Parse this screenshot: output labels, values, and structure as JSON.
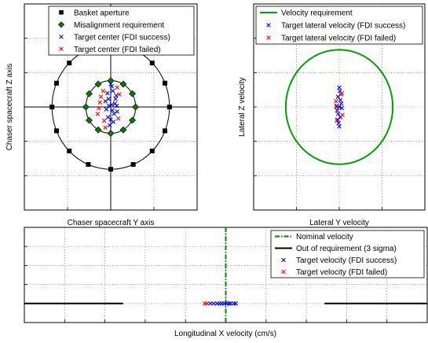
{
  "chart_data": [
    {
      "type": "scatter",
      "panel": "top-left",
      "xlabel": "Chaser spacecraft Y axis",
      "ylabel": "Chaser spacecraft Z axis",
      "xlim": [
        -4,
        4
      ],
      "ylim": [
        -4.5,
        4.5
      ],
      "grid": true,
      "legend_position": "top",
      "legend": [
        {
          "label": "Basket aperture",
          "marker": "square",
          "color": "#000000"
        },
        {
          "label": "Misalignment requirement",
          "marker": "diamond",
          "color": "#008000"
        },
        {
          "label": "Target center (FDI success)",
          "marker": "x",
          "color": "#0000ff"
        },
        {
          "label": "Target center (FDI failed)",
          "marker": "x",
          "color": "#ff0000"
        }
      ],
      "basket_aperture_radius": 2.72,
      "basket_aperture": [
        {
          "x": 2.72,
          "y": 0
        },
        {
          "x": 2.51,
          "y": 1.04
        },
        {
          "x": 1.92,
          "y": 1.92
        },
        {
          "x": 1.04,
          "y": 2.51
        },
        {
          "x": 0,
          "y": 2.72
        },
        {
          "x": -1.04,
          "y": 2.51
        },
        {
          "x": -1.92,
          "y": 1.92
        },
        {
          "x": -2.51,
          "y": 1.04
        },
        {
          "x": -2.72,
          "y": 0
        },
        {
          "x": -2.51,
          "y": -1.04
        },
        {
          "x": -1.92,
          "y": -1.92
        },
        {
          "x": -1.04,
          "y": -2.51
        },
        {
          "x": 0,
          "y": -2.72
        },
        {
          "x": 1.04,
          "y": -2.51
        },
        {
          "x": 1.92,
          "y": -1.92
        },
        {
          "x": 2.51,
          "y": -1.04
        }
      ],
      "misalignment_radius": 1.15,
      "misalignment_requirement": [
        {
          "x": 1.15,
          "y": 0
        },
        {
          "x": 1.0,
          "y": 0.58
        },
        {
          "x": 0.58,
          "y": 1.0
        },
        {
          "x": 0,
          "y": 1.15
        },
        {
          "x": -0.58,
          "y": 1.0
        },
        {
          "x": -1.0,
          "y": 0.58
        },
        {
          "x": -1.15,
          "y": 0
        },
        {
          "x": -1.0,
          "y": -0.58
        },
        {
          "x": -0.58,
          "y": -1.0
        },
        {
          "x": 0,
          "y": -1.15
        },
        {
          "x": 0.58,
          "y": -1.0
        },
        {
          "x": 1.0,
          "y": -0.58
        }
      ],
      "target_center_success": [
        {
          "x": 0.05,
          "y": 0.1
        },
        {
          "x": -0.1,
          "y": 0.35
        },
        {
          "x": 0.15,
          "y": -0.3
        },
        {
          "x": -0.2,
          "y": -0.1
        },
        {
          "x": 0.25,
          "y": 0.5
        },
        {
          "x": 0.0,
          "y": -0.55
        },
        {
          "x": 0.1,
          "y": 0.7
        },
        {
          "x": -0.05,
          "y": -0.8
        },
        {
          "x": 0.2,
          "y": 0.15
        },
        {
          "x": -0.15,
          "y": 0.6
        },
        {
          "x": 0.3,
          "y": -0.2
        },
        {
          "x": 0.05,
          "y": 0.9
        },
        {
          "x": -0.25,
          "y": 0.25
        },
        {
          "x": 0.12,
          "y": -0.65
        },
        {
          "x": -0.08,
          "y": 0.05
        },
        {
          "x": 0.22,
          "y": 0.35
        },
        {
          "x": 0.0,
          "y": 1.0
        },
        {
          "x": -0.12,
          "y": -0.45
        },
        {
          "x": 0.28,
          "y": 0.05
        },
        {
          "x": 0.08,
          "y": -0.15
        }
      ],
      "target_center_failed": [
        {
          "x": -0.5,
          "y": 0.2
        },
        {
          "x": -0.35,
          "y": 0.7
        },
        {
          "x": -0.6,
          "y": -0.3
        },
        {
          "x": -0.3,
          "y": -0.6
        },
        {
          "x": -0.45,
          "y": 0.45
        },
        {
          "x": -0.25,
          "y": -0.9
        },
        {
          "x": 0.35,
          "y": -0.5
        },
        {
          "x": 0.4,
          "y": 0.55
        },
        {
          "x": -0.55,
          "y": -0.05
        },
        {
          "x": 0.3,
          "y": 0.85
        }
      ]
    },
    {
      "type": "scatter",
      "panel": "top-right",
      "xlabel": "Lateral Y velocity",
      "ylabel": "Lateral Z velocity",
      "xlim": [
        -4,
        4
      ],
      "ylim": [
        -4.5,
        4.5
      ],
      "grid": true,
      "legend_position": "top",
      "legend": [
        {
          "label": "Velocity requirement",
          "marker": "line",
          "color": "#00a000"
        },
        {
          "label": "Target lateral velocity (FDI success)",
          "marker": "x",
          "color": "#0000ff"
        },
        {
          "label": "Target lateral velocity (FDI failed)",
          "marker": "x",
          "color": "#ff0000"
        }
      ],
      "velocity_requirement_radius": 2.5,
      "target_velocity_success": [
        {
          "x": 0.0,
          "y": 0.0
        },
        {
          "x": 0.05,
          "y": 0.3
        },
        {
          "x": -0.05,
          "y": -0.3
        },
        {
          "x": 0.08,
          "y": 0.55
        },
        {
          "x": -0.08,
          "y": -0.55
        },
        {
          "x": 0.03,
          "y": 0.7
        },
        {
          "x": -0.03,
          "y": -0.7
        },
        {
          "x": 0.1,
          "y": 0.15
        },
        {
          "x": -0.1,
          "y": -0.15
        },
        {
          "x": 0.06,
          "y": -0.45
        },
        {
          "x": -0.06,
          "y": 0.45
        },
        {
          "x": 0.0,
          "y": 0.85
        },
        {
          "x": 0.0,
          "y": -0.85
        },
        {
          "x": 0.12,
          "y": -0.05
        },
        {
          "x": -0.12,
          "y": 0.05
        }
      ],
      "target_velocity_failed": [
        {
          "x": -0.15,
          "y": 0.25
        },
        {
          "x": 0.15,
          "y": -0.35
        },
        {
          "x": -0.1,
          "y": -0.6
        },
        {
          "x": 0.12,
          "y": 0.6
        },
        {
          "x": -0.14,
          "y": 0.0
        }
      ]
    },
    {
      "type": "scatter",
      "panel": "bottom",
      "xlabel": "Longitudinal X velocity (cm/s)",
      "ylabel": "",
      "xlim": [
        0,
        10
      ],
      "ylim": [
        0,
        5
      ],
      "grid": true,
      "legend_position": "top-right",
      "legend": [
        {
          "label": "Nominal velocity",
          "marker": "dashdot",
          "color": "#008000"
        },
        {
          "label": "Out of requirement (3 sigma)",
          "marker": "line",
          "color": "#000000"
        },
        {
          "label": "Target velocity (FDI success)",
          "marker": "x",
          "color": "#0000ff"
        },
        {
          "label": "Target velocity (FDI failed)",
          "marker": "x",
          "color": "#ff0000"
        }
      ],
      "nominal_velocity": 5.0,
      "out_of_requirement_segments": [
        [
          0,
          2.45
        ],
        [
          7.45,
          10
        ]
      ],
      "baseline_y": 1,
      "target_velocity_success": [
        4.62,
        4.7,
        4.78,
        4.84,
        4.9,
        4.96,
        5.02,
        5.08,
        5.12,
        5.2,
        5.25
      ],
      "target_velocity_failed": [
        4.48,
        4.54
      ]
    }
  ]
}
